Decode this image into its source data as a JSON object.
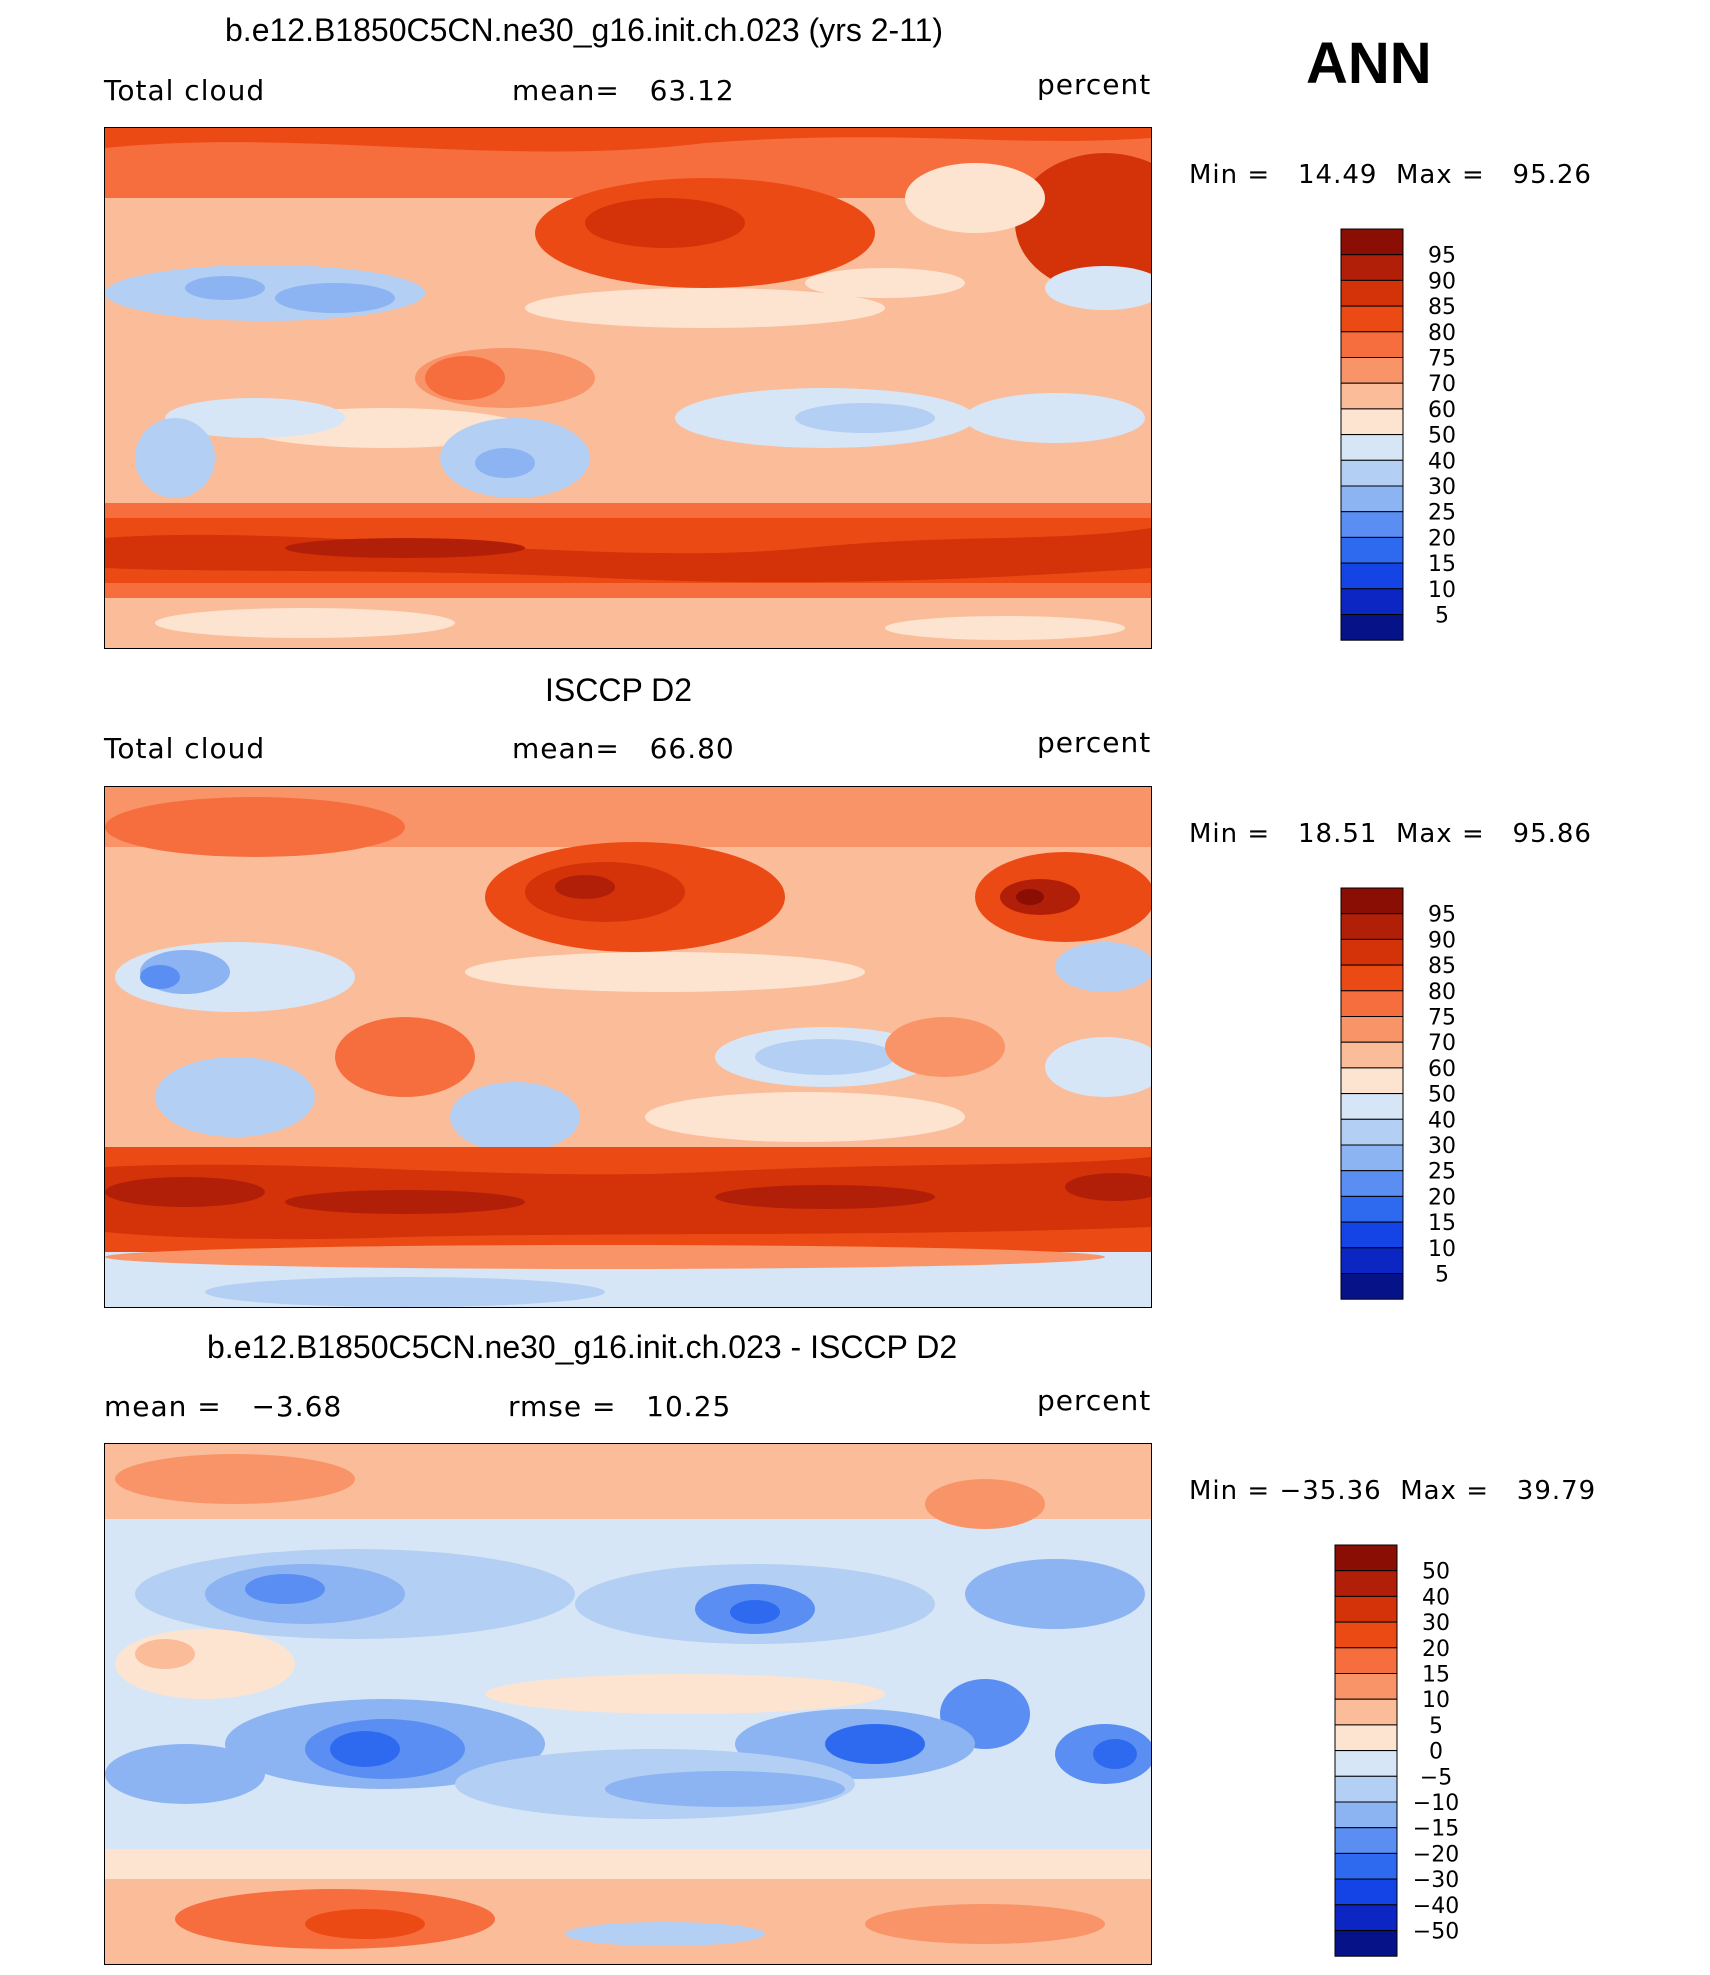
{
  "header": {
    "season": "ANN"
  },
  "panels": [
    {
      "title": "b.e12.B1850C5CN.ne30_g16.init.ch.023 (yrs 2-11)",
      "left_label": "Total cloud",
      "center_label": "mean=   63.12",
      "units": "percent",
      "minmax": "Min =   14.49  Max =   95.26",
      "colorbar": "abs"
    },
    {
      "title": "ISCCP D2",
      "left_label": "Total cloud",
      "center_label": "mean=   66.80",
      "units": "percent",
      "minmax": "Min =   18.51  Max =   95.86",
      "colorbar": "abs"
    },
    {
      "title": "b.e12.B1850C5CN.ne30_g16.init.ch.023 - ISCCP D2",
      "left_label": "mean =   −3.68",
      "center_label": "rmse =   10.25",
      "units": "percent",
      "minmax": "Min = −35.36  Max =   39.79",
      "colorbar": "diff"
    }
  ],
  "colorbars": {
    "abs": {
      "labels": [
        "95",
        "90",
        "85",
        "80",
        "75",
        "70",
        "60",
        "50",
        "40",
        "30",
        "25",
        "20",
        "15",
        "10",
        "5"
      ],
      "colors": [
        "#8a0e04",
        "#b21f08",
        "#d43208",
        "#ec4a14",
        "#f66e3e",
        "#f99468",
        "#fbbc9a",
        "#fde4d0",
        "#d6e6f6",
        "#b4cff4",
        "#8cb3f2",
        "#5a8ef2",
        "#2e6af0",
        "#1444e6",
        "#0c26c4",
        "#061288"
      ]
    },
    "diff": {
      "labels": [
        "50",
        "40",
        "30",
        "20",
        "15",
        "10",
        "5",
        "0",
        "−5",
        "−10",
        "−15",
        "−20",
        "−30",
        "−40",
        "−50"
      ],
      "colors": [
        "#8a0e04",
        "#b21f08",
        "#d43208",
        "#ec4a14",
        "#f66e3e",
        "#f99468",
        "#fbbc9a",
        "#fde4d0",
        "#d6e6f6",
        "#b4cff4",
        "#8cb3f2",
        "#5a8ef2",
        "#2e6af0",
        "#1444e6",
        "#0c26c4",
        "#061288"
      ]
    }
  },
  "chart_data": {
    "type": "heatmap",
    "variable": "Total cloud",
    "units": "percent",
    "season": "ANN",
    "panels": [
      {
        "name": "b.e12.B1850C5CN.ne30_g16.init.ch.023 (yrs 2-11)",
        "mean": 63.12,
        "min": 14.49,
        "max": 95.26
      },
      {
        "name": "ISCCP D2",
        "mean": 66.8,
        "min": 18.51,
        "max": 95.86
      },
      {
        "name": "b.e12.B1850C5CN.ne30_g16.init.ch.023 - ISCCP D2",
        "mean": -3.68,
        "rmse": 10.25,
        "min": -35.36,
        "max": 39.79
      }
    ],
    "contour_levels_abs": [
      5,
      10,
      15,
      20,
      25,
      30,
      40,
      50,
      60,
      70,
      75,
      80,
      85,
      90,
      95
    ],
    "contour_levels_diff": [
      -50,
      -40,
      -30,
      -20,
      -15,
      -10,
      -5,
      0,
      5,
      10,
      15,
      20,
      30,
      40,
      50
    ]
  }
}
